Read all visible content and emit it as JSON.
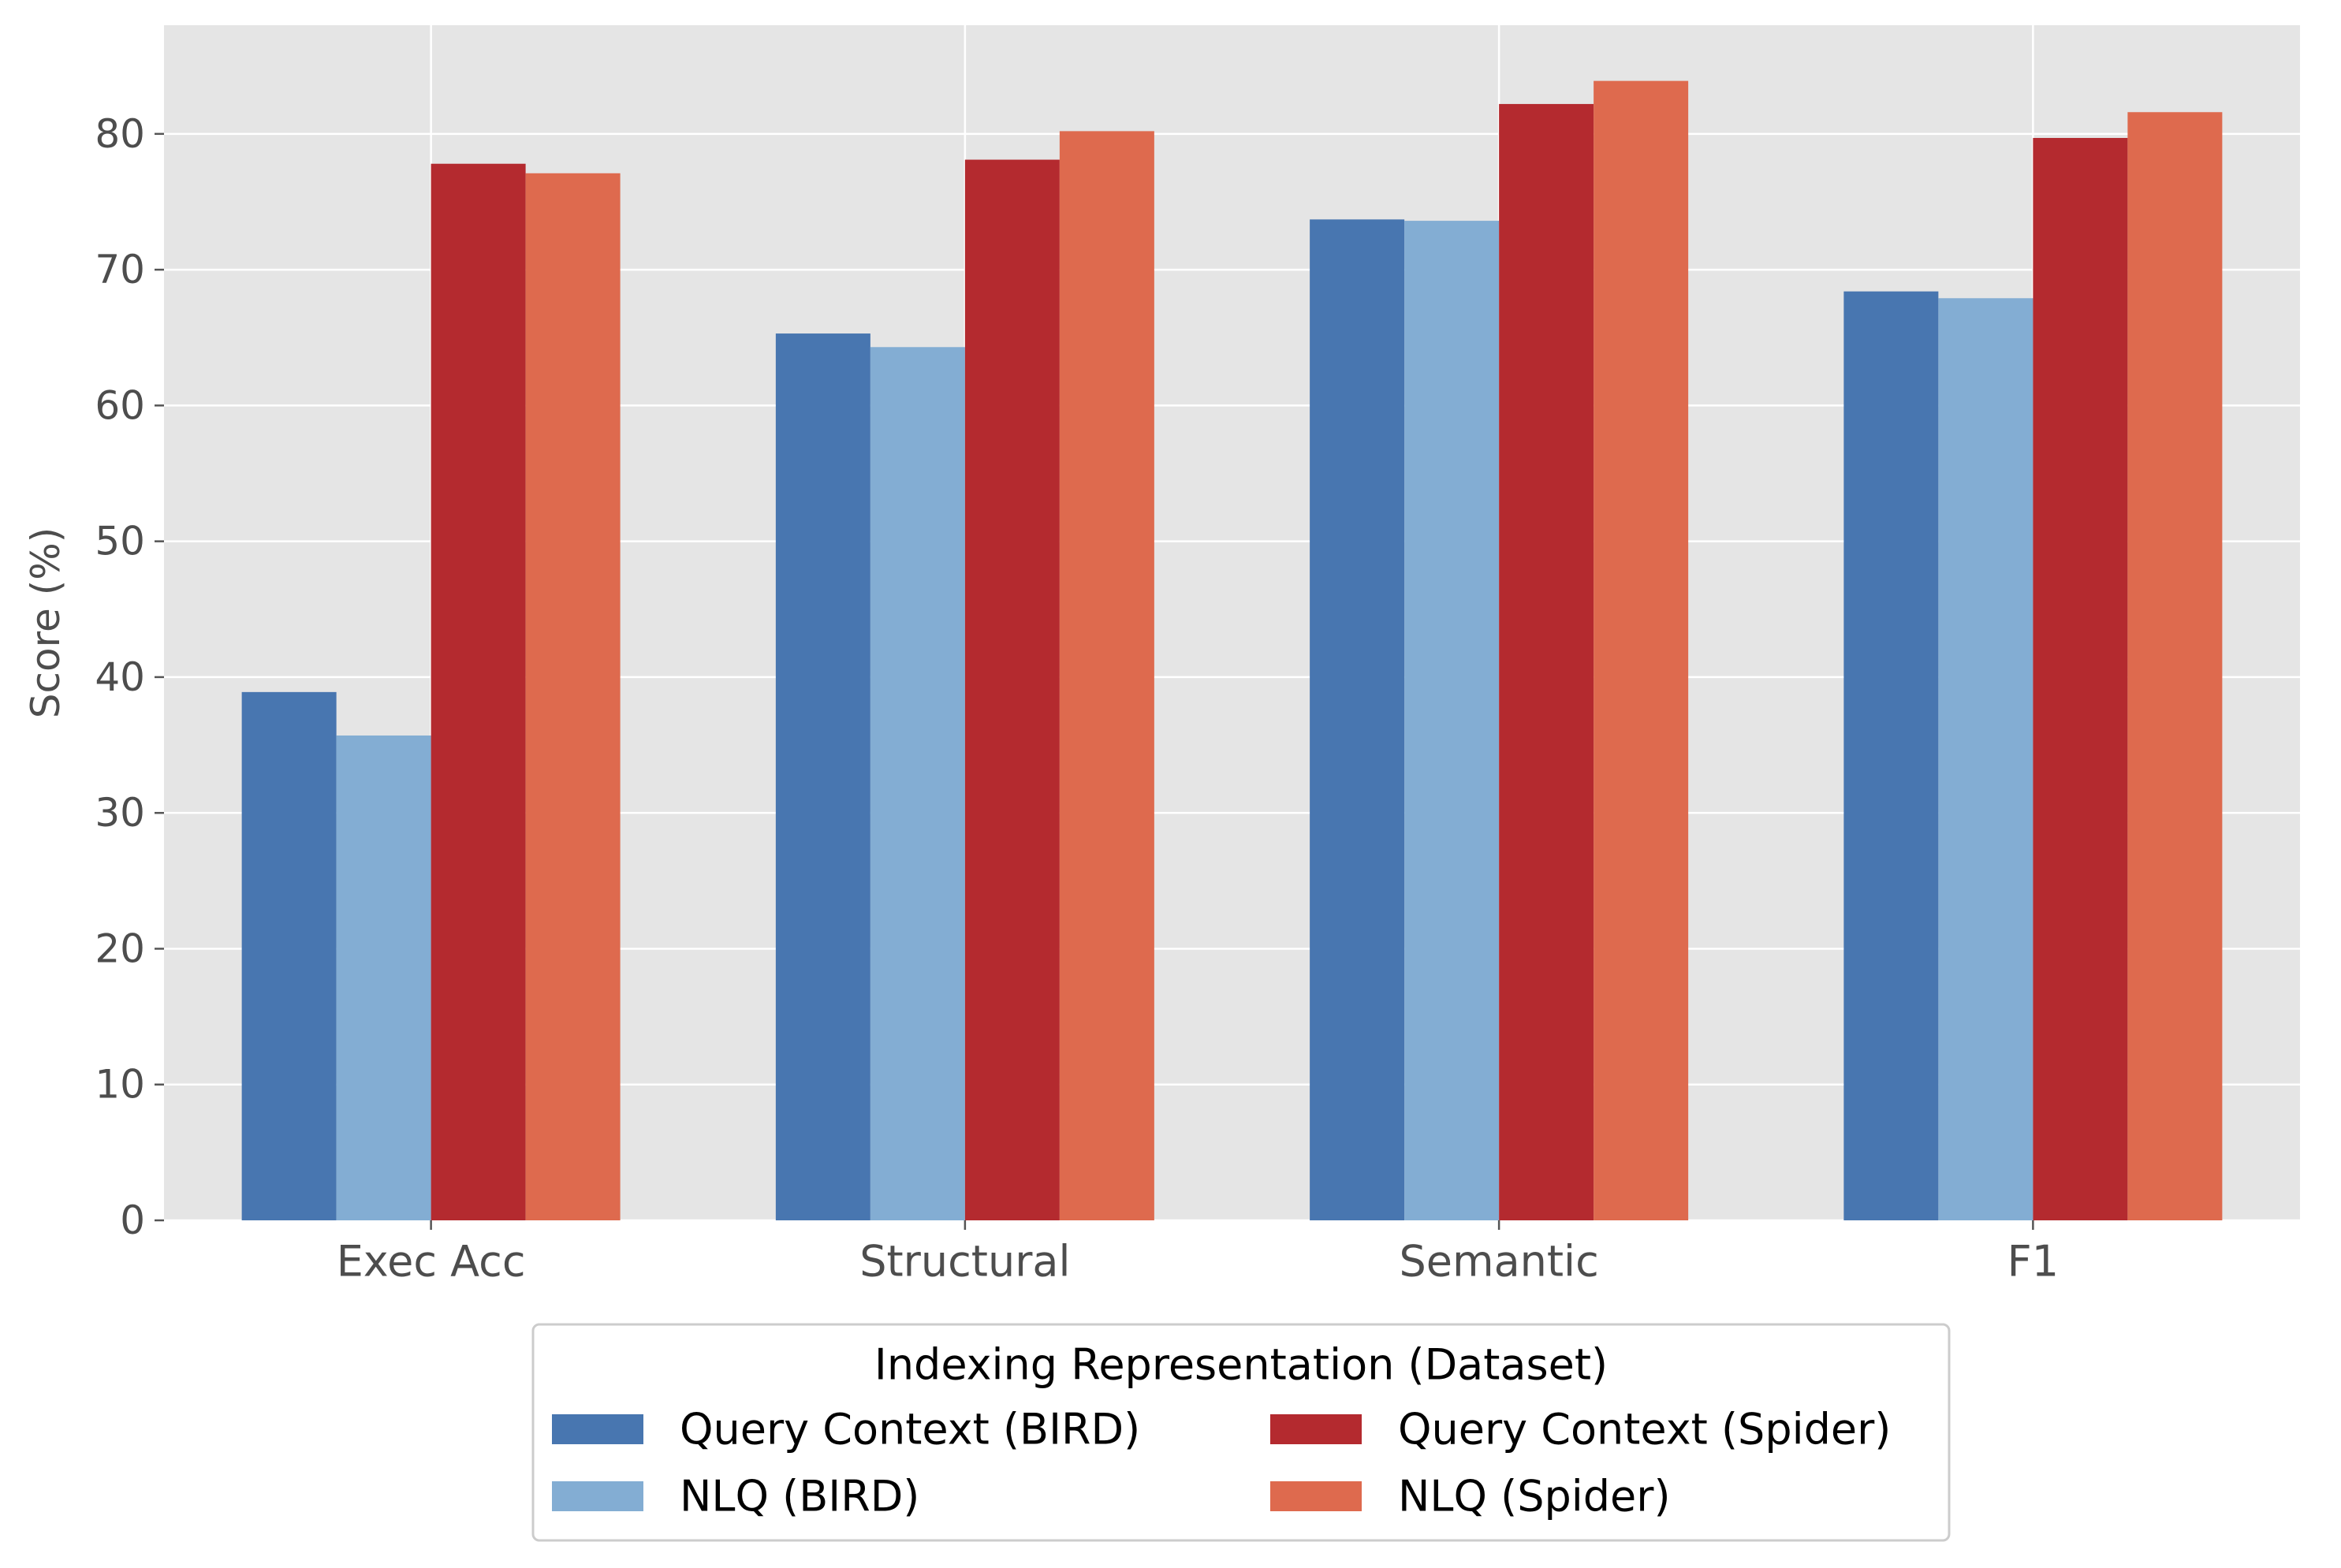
{
  "chart_data": {
    "type": "bar",
    "title": "",
    "xlabel": "",
    "ylabel": "Score (%)",
    "categories": [
      "Exec Acc",
      "Structural",
      "Semantic",
      "F1"
    ],
    "series": [
      {
        "name": "Query Context (BIRD)",
        "color": "#4876B0",
        "values": [
          38.9,
          65.3,
          73.7,
          68.4
        ]
      },
      {
        "name": "NLQ (BIRD)",
        "color": "#83ADD3",
        "values": [
          35.7,
          64.3,
          73.6,
          67.9
        ]
      },
      {
        "name": "Query Context (Spider)",
        "color": "#B42A2F",
        "values": [
          77.8,
          78.1,
          82.2,
          79.7
        ]
      },
      {
        "name": "NLQ (Spider)",
        "color": "#DE6A4E",
        "values": [
          77.1,
          80.2,
          83.9,
          81.6
        ]
      }
    ],
    "ylim": [
      0,
      88
    ],
    "yticks": [
      0,
      10,
      20,
      30,
      40,
      50,
      60,
      70,
      80
    ],
    "grid": true,
    "background": "#E5E5E5",
    "legend": {
      "title": "Indexing Representation (Dataset)",
      "placement": "bottom-center",
      "columns": 2
    }
  }
}
